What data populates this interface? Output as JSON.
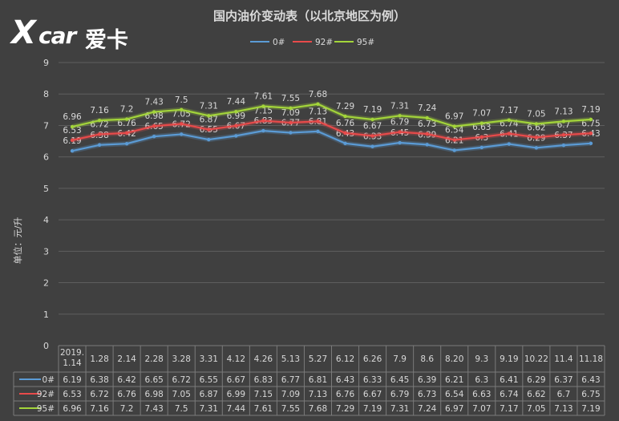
{
  "logo": {
    "x": "X",
    "car": "car",
    "cn": "爱卡"
  },
  "chart_data": {
    "type": "line",
    "title": "国内油价变动表（以北京地区为例）",
    "ylabel": "单位：元/升",
    "ylim": [
      0,
      9
    ],
    "yticks": [
      0,
      1,
      2,
      3,
      4,
      5,
      6,
      7,
      8,
      9
    ],
    "grid": true,
    "legend": "top-center",
    "categories": [
      "2019.1.14",
      "1.28",
      "2.14",
      "2.28",
      "3.28",
      "3.31",
      "4.12",
      "4.26",
      "5.13",
      "5.27",
      "6.12",
      "6.26",
      "7.9",
      "8.6",
      "8.20",
      "9.3",
      "9.19",
      "10.22",
      "11.4",
      "11.18"
    ],
    "category_lines": [
      [
        "2019.",
        "1.14"
      ],
      [
        "1.28"
      ],
      [
        "2.14"
      ],
      [
        "2.28"
      ],
      [
        "3.28"
      ],
      [
        "3.31"
      ],
      [
        "4.12"
      ],
      [
        "4.26"
      ],
      [
        "5.13"
      ],
      [
        "5.27"
      ],
      [
        "6.12"
      ],
      [
        "6.26"
      ],
      [
        "7.9"
      ],
      [
        "8.6"
      ],
      [
        "8.20"
      ],
      [
        "9.3"
      ],
      [
        "9.19"
      ],
      [
        "10.22"
      ],
      [
        "11.4"
      ],
      [
        "11.18"
      ]
    ],
    "series": [
      {
        "name": "0#",
        "color": "#5b9bd5",
        "values": [
          6.19,
          6.38,
          6.42,
          6.65,
          6.72,
          6.55,
          6.67,
          6.83,
          6.77,
          6.81,
          6.43,
          6.33,
          6.45,
          6.39,
          6.21,
          6.3,
          6.41,
          6.29,
          6.37,
          6.43
        ]
      },
      {
        "name": "92#",
        "color": "#e84a4a",
        "values": [
          6.53,
          6.72,
          6.76,
          6.98,
          7.05,
          6.87,
          6.99,
          7.15,
          7.09,
          7.13,
          6.76,
          6.67,
          6.79,
          6.73,
          6.54,
          6.63,
          6.74,
          6.62,
          6.7,
          6.75
        ]
      },
      {
        "name": "95#",
        "color": "#a3d53a",
        "values": [
          6.96,
          7.16,
          7.2,
          7.43,
          7.5,
          7.31,
          7.44,
          7.61,
          7.55,
          7.68,
          7.29,
          7.19,
          7.31,
          7.24,
          6.97,
          7.07,
          7.17,
          7.05,
          7.13,
          7.19
        ]
      }
    ]
  }
}
